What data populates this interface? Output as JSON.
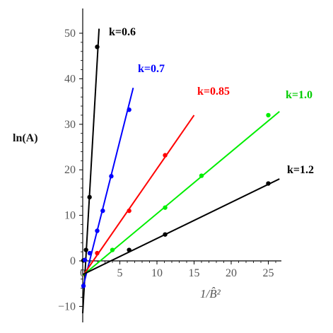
{
  "chart_data": {
    "type": "scatter",
    "title": "",
    "xlabel": "1/B̂²",
    "ylabel": "ln(A)",
    "xlim": [
      0,
      26.5
    ],
    "ylim": [
      -12,
      50
    ],
    "x_ticks": [
      0,
      5,
      10,
      15,
      20,
      25
    ],
    "y_ticks": [
      -10,
      0,
      10,
      20,
      30,
      40,
      50
    ],
    "grid": false,
    "legend": "inline labels at line ends",
    "series": [
      {
        "name": "k=0.6",
        "color": "#000000",
        "points": [
          [
            0.1,
            0.1
          ],
          [
            0.44,
            2.4
          ],
          [
            0.92,
            14.0
          ],
          [
            1.95,
            47.0
          ]
        ],
        "fit_line": [
          [
            0,
            -11.5
          ],
          [
            2.2,
            51.0
          ]
        ]
      },
      {
        "name": "k=0.7",
        "color": "#0000ff",
        "points": [
          [
            0.1,
            -5.5
          ],
          [
            0.3,
            0.2
          ],
          [
            0.95,
            1.7
          ],
          [
            1.95,
            6.6
          ],
          [
            2.7,
            11.0
          ],
          [
            3.85,
            18.6
          ],
          [
            6.25,
            33.2
          ]
        ],
        "fit_line": [
          [
            0,
            -6.0
          ],
          [
            6.8,
            38.0
          ]
        ]
      },
      {
        "name": "k=0.85",
        "color": "#ff0000",
        "points": [
          [
            1.95,
            1.7
          ],
          [
            6.25,
            11.0
          ],
          [
            11.1,
            23.2
          ]
        ],
        "fit_line": [
          [
            0,
            -3.3
          ],
          [
            15.0,
            32.0
          ]
        ]
      },
      {
        "name": "k=1.0",
        "color": "#00ee00",
        "points": [
          [
            4.0,
            2.4
          ],
          [
            11.1,
            11.7
          ],
          [
            16.0,
            18.7
          ],
          [
            25.0,
            32.0
          ]
        ],
        "fit_line": [
          [
            0,
            -3.2
          ],
          [
            26.5,
            32.8
          ]
        ]
      },
      {
        "name": "k=1.2",
        "color": "#000000",
        "points": [
          [
            6.25,
            2.4
          ],
          [
            11.1,
            5.8
          ],
          [
            25.0,
            17.0
          ]
        ],
        "fit_line": [
          [
            0,
            -3.0
          ],
          [
            26.5,
            18.0
          ]
        ]
      }
    ]
  }
}
